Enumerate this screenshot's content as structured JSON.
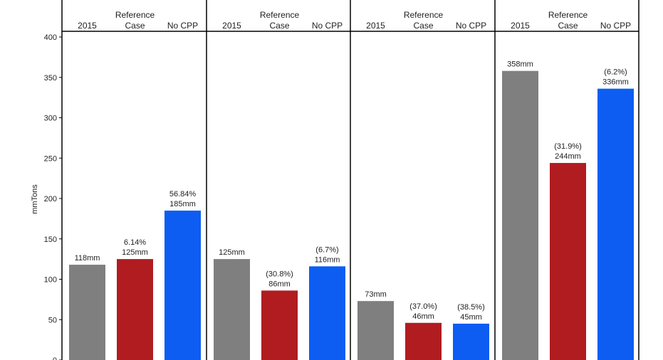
{
  "chart_data": {
    "type": "bar",
    "ylabel": "mmTons",
    "ylim": [
      0,
      400
    ],
    "yticks": [
      0,
      50,
      100,
      150,
      200,
      250,
      300,
      350,
      400
    ],
    "category_headers": [
      "2015",
      "Reference\nCase",
      "No CPP"
    ],
    "colors": [
      "#7f7f7f",
      "#b01c20",
      "#0d5df2"
    ],
    "panels": [
      {
        "values": [
          118,
          125,
          185
        ],
        "labels": [
          "118mm",
          "6.14%\n125mm",
          "56.84%\n185mm"
        ]
      },
      {
        "values": [
          125,
          86,
          116
        ],
        "labels": [
          "125mm",
          "(30.8%)\n86mm",
          "(6.7%)\n116mm"
        ]
      },
      {
        "values": [
          73,
          46,
          45
        ],
        "labels": [
          "73mm",
          "(37.0%)\n46mm",
          "(38.5%)\n45mm"
        ]
      },
      {
        "values": [
          358,
          244,
          336
        ],
        "labels": [
          "358mm",
          "(31.9%)\n244mm",
          "(6.2%)\n336mm"
        ]
      }
    ]
  }
}
